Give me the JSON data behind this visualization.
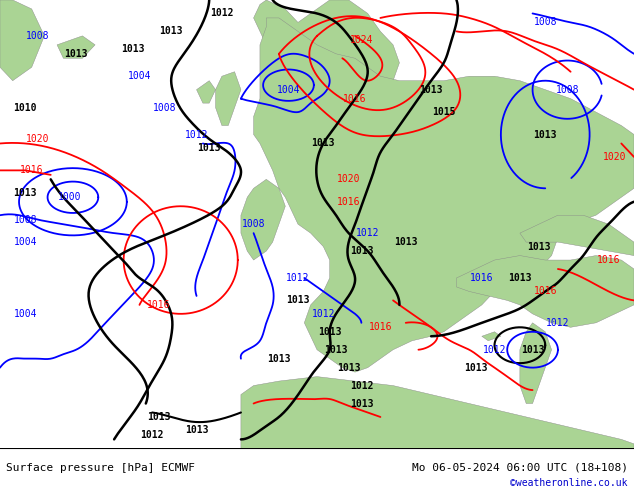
{
  "title_left": "Surface pressure [hPa] ECMWF",
  "title_right": "Mo 06-05-2024 06:00 UTC (18+108)",
  "credit": "©weatheronline.co.uk",
  "credit_color": "#0000cc",
  "fig_width": 6.34,
  "fig_height": 4.9,
  "dpi": 100,
  "map_bg_land": "#aad494",
  "map_bg_sea": "#c8c8c8",
  "bottom_bar_height": 0.085,
  "font_size_title": 8,
  "font_family": "monospace"
}
